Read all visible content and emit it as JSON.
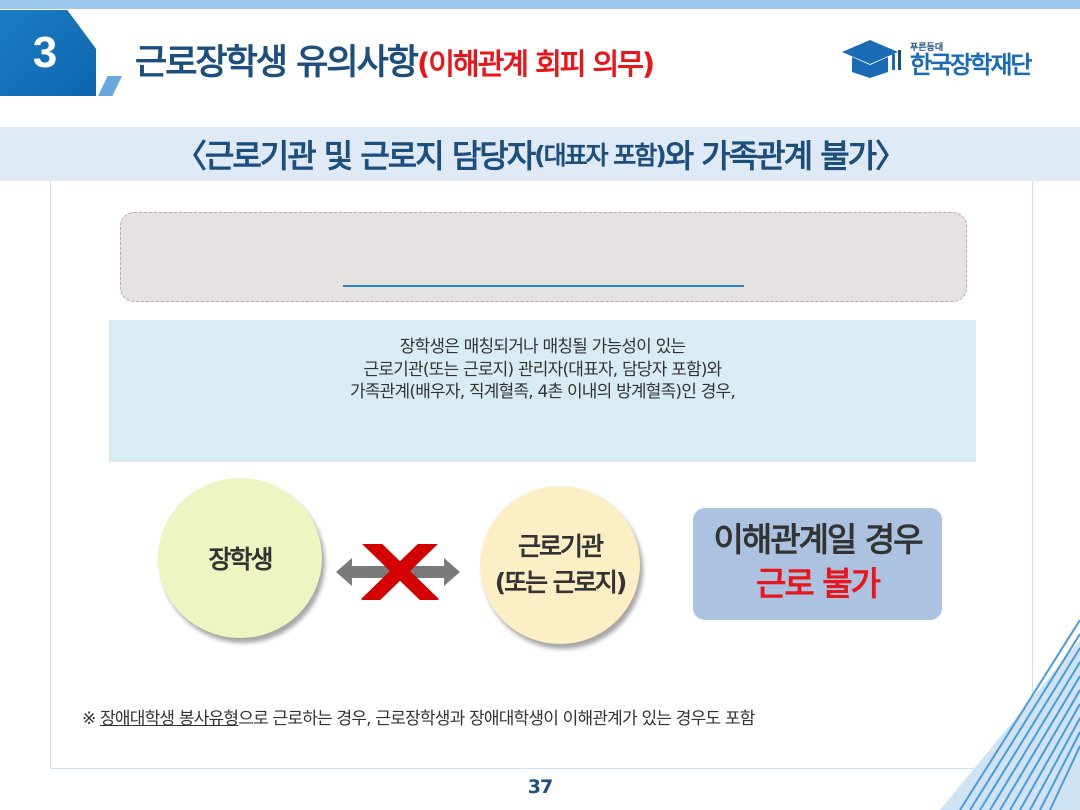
{
  "header": {
    "section_number": "3",
    "title_main": "근로장학생 유의사항",
    "title_highlight": "(이해관계 회피 의무)",
    "logo_sub": "푸른등대",
    "logo_main": "한국장학재단"
  },
  "subtitle": {
    "open": "〈 ",
    "main1": "근로기관 및 근로지 담당자",
    "small": "(대표자 포함)",
    "main2": "와 가족관계 불가",
    "close": " 〉"
  },
  "info": {
    "lines": [
      "장학생은 매칭되거나 매칭될 가능성이 있는",
      "근로기관(또는 근로지) 관리자(대표자, 담당자 포함)와",
      "가족관계(배우자, 직계혈족, 4촌 이내의 방계혈족)인 경우,"
    ]
  },
  "diagram": {
    "left_circle": "장학생",
    "right_circle_line1": "근로기관",
    "right_circle_line2": "(또는 근로지)",
    "result_line1": "이해관계일 경우",
    "result_line2": "근로 불가"
  },
  "note": {
    "mark": "※ ",
    "underlined": "장애대학생 봉사유형",
    "rest": "으로 근로하는 경우, 근로장학생과 장애대학생이 이해관계가 있는 경우도 포함"
  },
  "page_number": "37",
  "colors": {
    "brand_blue": "#1c4e7e",
    "accent_red": "#e8151b",
    "band_bg": "#dfeaf6",
    "info_bg": "#daecf3"
  }
}
